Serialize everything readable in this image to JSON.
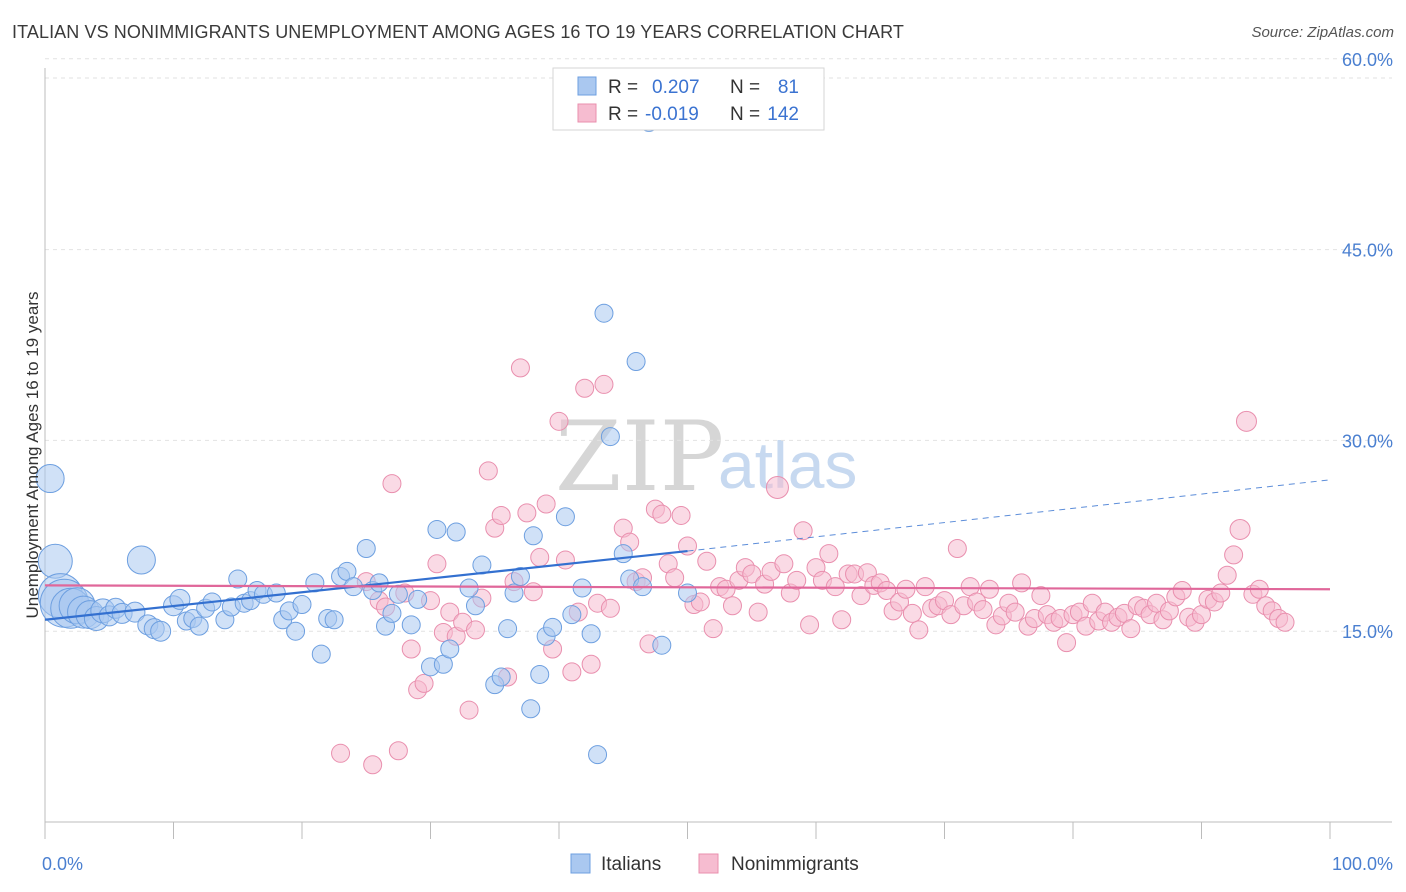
{
  "title": "ITALIAN VS NONIMMIGRANTS UNEMPLOYMENT AMONG AGES 16 TO 19 YEARS CORRELATION CHART",
  "source": "Source: ZipAtlas.com",
  "watermark": {
    "zip": "ZIP",
    "atlas": "atlas"
  },
  "colors": {
    "italians_fill": "#aac8f0",
    "italians_stroke": "#6d9fe0",
    "italians_line": "#3370d0",
    "nonimm_fill": "#f6bcd0",
    "nonimm_stroke": "#e98fae",
    "nonimm_line": "#e0679a",
    "tick_label": "#4a7fd0"
  },
  "legend": {
    "rows": [
      {
        "r_label": "R =",
        "r_value": "0.207",
        "n_label": "N =",
        "n_value": "81"
      },
      {
        "r_label": "R =",
        "r_value": "-0.019",
        "n_label": "N =",
        "n_value": "142"
      }
    ]
  },
  "bottom_legend": [
    "Italians",
    "Nonimmigrants"
  ],
  "chart_data": {
    "type": "scatter",
    "title": "ITALIAN VS NONIMMIGRANTS UNEMPLOYMENT AMONG AGES 16 TO 19 YEARS CORRELATION CHART",
    "xlabel": "",
    "ylabel": "Unemployment Among Ages 16 to 19 years",
    "xlim": [
      0,
      100
    ],
    "ylim": [
      0,
      62
    ],
    "x_tick_labels": [
      "0.0%",
      "100.0%"
    ],
    "y_ticks": [
      15,
      30,
      45,
      60
    ],
    "y_tick_labels": [
      "15.0%",
      "30.0%",
      "45.0%",
      "60.0%"
    ],
    "grid": true,
    "legend_position": "top-center",
    "series": [
      {
        "name": "Italians",
        "trend": {
          "x0": 0,
          "y0": 15.9,
          "x1": 50,
          "y1": 21.3,
          "dashed_to_x": 100,
          "dashed_to_y": 26.9
        },
        "points": [
          [
            0.4,
            27.0,
            14
          ],
          [
            0.8,
            20.5,
            17
          ],
          [
            1.2,
            17.8,
            22
          ],
          [
            1.5,
            17.2,
            24
          ],
          [
            2.0,
            16.8,
            20
          ],
          [
            2.5,
            17.0,
            18
          ],
          [
            3.0,
            16.5,
            16
          ],
          [
            3.5,
            16.3,
            14
          ],
          [
            4.0,
            16.0,
            12
          ],
          [
            4.5,
            16.6,
            12
          ],
          [
            5.0,
            16.2,
            10
          ],
          [
            5.5,
            16.8,
            10
          ],
          [
            6.0,
            16.4,
            10
          ],
          [
            7.5,
            20.6,
            14
          ],
          [
            7.0,
            16.5,
            10
          ],
          [
            8.0,
            15.5,
            10
          ],
          [
            8.5,
            15.2,
            10
          ],
          [
            9.0,
            15.0,
            10
          ],
          [
            10.0,
            17.0,
            10
          ],
          [
            10.5,
            17.5,
            10
          ],
          [
            11.0,
            15.8,
            9
          ],
          [
            11.5,
            16.0,
            9
          ],
          [
            12.0,
            15.4,
            9
          ],
          [
            12.5,
            16.8,
            9
          ],
          [
            13.0,
            17.3,
            9
          ],
          [
            14.0,
            15.9,
            9
          ],
          [
            14.5,
            16.9,
            9
          ],
          [
            15.0,
            19.1,
            9
          ],
          [
            15.5,
            17.2,
            9
          ],
          [
            16.0,
            17.4,
            9
          ],
          [
            16.5,
            18.2,
            9
          ],
          [
            17.0,
            17.9,
            9
          ],
          [
            18.0,
            18.0,
            9
          ],
          [
            18.5,
            15.9,
            9
          ],
          [
            19.0,
            16.6,
            9
          ],
          [
            19.5,
            15.0,
            9
          ],
          [
            20.0,
            17.1,
            9
          ],
          [
            21.0,
            18.8,
            9
          ],
          [
            21.5,
            13.2,
            9
          ],
          [
            22.0,
            16.0,
            9
          ],
          [
            22.5,
            15.9,
            9
          ],
          [
            23.0,
            19.3,
            9
          ],
          [
            23.5,
            19.7,
            9
          ],
          [
            24.0,
            18.5,
            9
          ],
          [
            25.0,
            21.5,
            9
          ],
          [
            25.5,
            18.2,
            9
          ],
          [
            26.0,
            18.8,
            9
          ],
          [
            26.5,
            15.4,
            9
          ],
          [
            27.0,
            16.4,
            9
          ],
          [
            27.5,
            17.9,
            9
          ],
          [
            28.5,
            15.5,
            9
          ],
          [
            29.0,
            17.5,
            9
          ],
          [
            30.0,
            12.2,
            9
          ],
          [
            30.5,
            23.0,
            9
          ],
          [
            31.0,
            12.4,
            9
          ],
          [
            31.5,
            13.6,
            9
          ],
          [
            32.0,
            22.8,
            9
          ],
          [
            33.0,
            18.4,
            9
          ],
          [
            33.5,
            17.0,
            9
          ],
          [
            34.0,
            20.2,
            9
          ],
          [
            35.0,
            10.8,
            9
          ],
          [
            35.5,
            11.4,
            9
          ],
          [
            36.0,
            15.2,
            9
          ],
          [
            36.5,
            18.0,
            9
          ],
          [
            37.0,
            19.3,
            9
          ],
          [
            37.8,
            8.9,
            9
          ],
          [
            38.0,
            22.5,
            9
          ],
          [
            38.5,
            11.6,
            9
          ],
          [
            39.0,
            14.6,
            9
          ],
          [
            39.5,
            15.3,
            9
          ],
          [
            40.5,
            24.0,
            9
          ],
          [
            41.0,
            16.3,
            9
          ],
          [
            41.8,
            18.4,
            9
          ],
          [
            42.5,
            14.8,
            9
          ],
          [
            43.0,
            5.3,
            9
          ],
          [
            43.5,
            40.0,
            9
          ],
          [
            44.0,
            30.3,
            9
          ],
          [
            45.0,
            21.1,
            9
          ],
          [
            45.5,
            19.1,
            9
          ],
          [
            46.0,
            36.2,
            9
          ],
          [
            46.5,
            18.5,
            9
          ],
          [
            47.0,
            55.0,
            9
          ],
          [
            48.0,
            13.9,
            9
          ],
          [
            50.0,
            18.0,
            9
          ]
        ]
      },
      {
        "name": "Nonimmigrants",
        "trend": {
          "x0": 0,
          "y0": 18.6,
          "x1": 100,
          "y1": 18.3
        },
        "points": [
          [
            23.0,
            5.4,
            9
          ],
          [
            25.0,
            18.9,
            9
          ],
          [
            25.5,
            4.5,
            9
          ],
          [
            26.0,
            17.4,
            9
          ],
          [
            26.5,
            16.9,
            9
          ],
          [
            27.0,
            26.6,
            9
          ],
          [
            27.5,
            5.6,
            9
          ],
          [
            28.0,
            18.0,
            9
          ],
          [
            28.5,
            13.6,
            9
          ],
          [
            29.0,
            10.4,
            9
          ],
          [
            29.5,
            10.9,
            9
          ],
          [
            30.0,
            17.4,
            9
          ],
          [
            30.5,
            20.3,
            9
          ],
          [
            31.0,
            14.9,
            9
          ],
          [
            31.5,
            16.5,
            9
          ],
          [
            32.0,
            14.6,
            9
          ],
          [
            32.5,
            15.7,
            9
          ],
          [
            33.0,
            8.8,
            9
          ],
          [
            33.5,
            15.1,
            9
          ],
          [
            34.0,
            17.6,
            9
          ],
          [
            34.5,
            27.6,
            9
          ],
          [
            35.0,
            23.1,
            9
          ],
          [
            35.5,
            24.1,
            9
          ],
          [
            36.0,
            11.4,
            9
          ],
          [
            36.5,
            18.9,
            9
          ],
          [
            37.0,
            35.7,
            9
          ],
          [
            37.5,
            24.3,
            9
          ],
          [
            38.0,
            18.1,
            9
          ],
          [
            38.5,
            20.8,
            9
          ],
          [
            39.0,
            25.0,
            9
          ],
          [
            39.5,
            13.6,
            9
          ],
          [
            40.0,
            31.5,
            9
          ],
          [
            40.5,
            20.6,
            9
          ],
          [
            41.0,
            11.8,
            9
          ],
          [
            41.5,
            16.5,
            9
          ],
          [
            42.0,
            34.1,
            9
          ],
          [
            42.5,
            12.4,
            9
          ],
          [
            43.0,
            17.2,
            9
          ],
          [
            43.5,
            34.4,
            9
          ],
          [
            44.0,
            16.8,
            9
          ],
          [
            45.0,
            23.1,
            9
          ],
          [
            45.5,
            22.0,
            9
          ],
          [
            46.0,
            18.9,
            9
          ],
          [
            46.5,
            19.2,
            9
          ],
          [
            47.0,
            14.0,
            9
          ],
          [
            47.5,
            24.6,
            9
          ],
          [
            48.0,
            24.2,
            9
          ],
          [
            48.5,
            20.3,
            9
          ],
          [
            49.0,
            19.2,
            9
          ],
          [
            49.5,
            24.1,
            9
          ],
          [
            50.0,
            21.7,
            9
          ],
          [
            50.5,
            17.1,
            9
          ],
          [
            51.0,
            17.3,
            9
          ],
          [
            51.5,
            20.5,
            9
          ],
          [
            52.0,
            15.2,
            9
          ],
          [
            52.5,
            18.5,
            9
          ],
          [
            53.0,
            18.3,
            9
          ],
          [
            53.5,
            17.0,
            9
          ],
          [
            54.0,
            19.0,
            9
          ],
          [
            54.5,
            20.0,
            9
          ],
          [
            55.0,
            19.5,
            9
          ],
          [
            55.5,
            16.5,
            9
          ],
          [
            56.0,
            18.7,
            9
          ],
          [
            56.5,
            19.7,
            9
          ],
          [
            57.0,
            26.3,
            11
          ],
          [
            57.5,
            20.3,
            9
          ],
          [
            58.0,
            18.0,
            9
          ],
          [
            58.5,
            19.0,
            9
          ],
          [
            59.0,
            22.9,
            9
          ],
          [
            59.5,
            15.5,
            9
          ],
          [
            60.0,
            20.0,
            9
          ],
          [
            60.5,
            19.0,
            9
          ],
          [
            61.0,
            21.1,
            9
          ],
          [
            61.5,
            18.5,
            9
          ],
          [
            62.0,
            15.9,
            9
          ],
          [
            62.5,
            19.5,
            9
          ],
          [
            63.0,
            19.5,
            9
          ],
          [
            63.5,
            17.8,
            9
          ],
          [
            64.0,
            19.6,
            9
          ],
          [
            64.5,
            18.6,
            9
          ],
          [
            65.0,
            18.8,
            9
          ],
          [
            65.5,
            18.2,
            9
          ],
          [
            66.0,
            16.6,
            9
          ],
          [
            66.5,
            17.3,
            9
          ],
          [
            67.0,
            18.3,
            9
          ],
          [
            67.5,
            16.4,
            9
          ],
          [
            68.0,
            15.1,
            9
          ],
          [
            68.5,
            18.5,
            9
          ],
          [
            69.0,
            16.8,
            9
          ],
          [
            69.5,
            17.0,
            9
          ],
          [
            70.0,
            17.4,
            9
          ],
          [
            70.5,
            16.3,
            9
          ],
          [
            71.0,
            21.5,
            9
          ],
          [
            71.5,
            17.0,
            9
          ],
          [
            72.0,
            18.5,
            9
          ],
          [
            72.5,
            17.3,
            9
          ],
          [
            73.0,
            16.7,
            9
          ],
          [
            73.5,
            18.3,
            9
          ],
          [
            74.0,
            15.5,
            9
          ],
          [
            74.5,
            16.2,
            9
          ],
          [
            75.0,
            17.2,
            9
          ],
          [
            75.5,
            16.5,
            9
          ],
          [
            76.0,
            18.8,
            9
          ],
          [
            76.5,
            15.4,
            9
          ],
          [
            77.0,
            16.0,
            9
          ],
          [
            77.5,
            17.8,
            9
          ],
          [
            78.0,
            16.3,
            9
          ],
          [
            78.5,
            15.7,
            9
          ],
          [
            79.0,
            16.0,
            9
          ],
          [
            79.5,
            14.1,
            9
          ],
          [
            80.0,
            16.3,
            9
          ],
          [
            80.5,
            16.5,
            9
          ],
          [
            81.0,
            15.4,
            9
          ],
          [
            81.5,
            17.2,
            9
          ],
          [
            82.0,
            15.8,
            9
          ],
          [
            82.5,
            16.5,
            9
          ],
          [
            83.0,
            15.7,
            9
          ],
          [
            83.5,
            16.1,
            9
          ],
          [
            84.0,
            16.4,
            9
          ],
          [
            84.5,
            15.2,
            9
          ],
          [
            85.0,
            17.0,
            9
          ],
          [
            85.5,
            16.8,
            9
          ],
          [
            86.0,
            16.3,
            9
          ],
          [
            86.5,
            17.2,
            9
          ],
          [
            87.0,
            15.9,
            9
          ],
          [
            87.5,
            16.6,
            9
          ],
          [
            88.0,
            17.7,
            9
          ],
          [
            88.5,
            18.2,
            9
          ],
          [
            89.0,
            16.1,
            9
          ],
          [
            89.5,
            15.7,
            9
          ],
          [
            90.0,
            16.3,
            9
          ],
          [
            90.5,
            17.5,
            9
          ],
          [
            91.0,
            17.3,
            9
          ],
          [
            91.5,
            18.0,
            9
          ],
          [
            92.0,
            19.4,
            9
          ],
          [
            92.5,
            21.0,
            9
          ],
          [
            93.0,
            23.0,
            10
          ],
          [
            93.5,
            31.5,
            10
          ],
          [
            94.0,
            17.9,
            9
          ],
          [
            94.5,
            18.3,
            9
          ],
          [
            95.0,
            17.0,
            9
          ],
          [
            95.5,
            16.6,
            9
          ],
          [
            96.0,
            16.0,
            9
          ],
          [
            96.5,
            15.7,
            9
          ]
        ]
      }
    ]
  }
}
